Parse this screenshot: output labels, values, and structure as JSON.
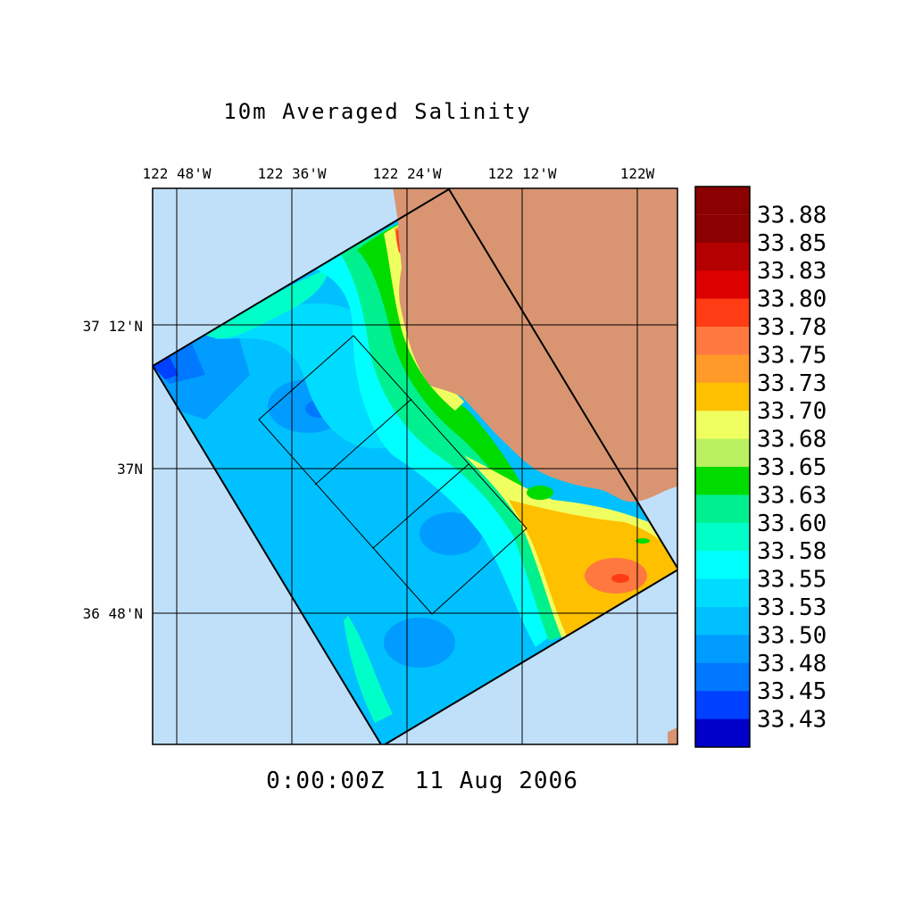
{
  "title": "10m Averaged Salinity",
  "timestamp": "0:00:00Z  11 Aug 2006",
  "longitude_labels": [
    "122 48'W",
    "122 36'W",
    "122 24'W",
    "122 12'W",
    "122W"
  ],
  "latitude_labels": [
    "37 12'N",
    "37N",
    "36 48'N"
  ],
  "colorbar": {
    "labels": [
      "33.88",
      "33.85",
      "33.83",
      "33.80",
      "33.78",
      "33.75",
      "33.73",
      "33.70",
      "33.68",
      "33.65",
      "33.63",
      "33.60",
      "33.58",
      "33.55",
      "33.53",
      "33.50",
      "33.48",
      "33.45",
      "33.43"
    ],
    "colors": [
      "#8b0000",
      "#b40000",
      "#dc0000",
      "#ff3c14",
      "#ff7840",
      "#ff9a28",
      "#ffc000",
      "#f0ff60",
      "#b8f060",
      "#00dc00",
      "#00f090",
      "#00ffc8",
      "#00ffff",
      "#00dcff",
      "#00c0ff",
      "#009cff",
      "#0078ff",
      "#0040ff",
      "#0000c8"
    ]
  },
  "colors": {
    "ocean": "#c0e0fa",
    "land": "#d99572",
    "frame": "#000000"
  }
}
